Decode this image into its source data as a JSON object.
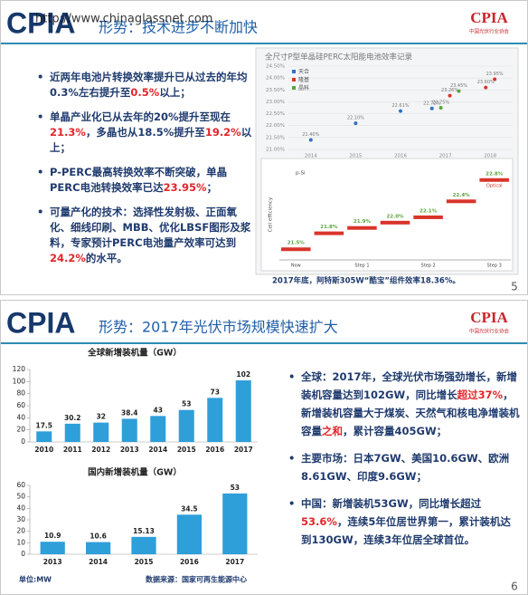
{
  "slides": [
    {
      "logo": "CPIA",
      "logo_sub": "中国光伏行业协会",
      "watermark": "http://www.chinaglassnet.com",
      "title": "形势：技术进步不断加快",
      "bullets": [
        [
          {
            "text": "近两年电池片转换效率提升已从过去的年均0.3%左右提升至"
          },
          {
            "text": "0.5%",
            "color": "#e3262b"
          },
          {
            "text": "以上；"
          }
        ],
        [
          {
            "text": "单晶产业化已从去年的20%提升至现在"
          },
          {
            "text": "21.3%",
            "color": "#e3262b"
          },
          {
            "text": "，多晶也从18.5%提升至"
          },
          {
            "text": "19.2%",
            "color": "#e3262b"
          },
          {
            "text": "以上；"
          }
        ],
        [
          {
            "text": "P-PERC最高转换效率不断突破，单晶PERC电池转换效率已达"
          },
          {
            "text": "23.95%",
            "color": "#e3262b"
          },
          {
            "text": "；"
          }
        ],
        [
          {
            "text": "可量产化的技术：选择性发射极、正面氧化、细线印刷、MBB、优化LBSF图形及浆料，专家预计PERC电池量产效率可达到"
          },
          {
            "text": "24.2%",
            "color": "#e3262b"
          },
          {
            "text": "的水平。"
          }
        ]
      ],
      "charts": [
        {
          "type": "scatter",
          "title": "全尺寸P型单晶硅PERC太阳能电池效率记录",
          "xlim": [
            2013.5,
            2018.5
          ],
          "xticks": [
            2014,
            2015,
            2016,
            2017,
            2018
          ],
          "ylim": [
            21,
            24.5
          ],
          "yticks": [
            {
              "value": 21,
              "label": "21.00%"
            },
            {
              "value": 21.5,
              "label": "21.50%"
            },
            {
              "value": 22,
              "label": "22.00%"
            },
            {
              "value": 22.5,
              "label": "22.50%"
            },
            {
              "value": 23,
              "label": "23.00%"
            },
            {
              "value": 23.5,
              "label": "23.50%"
            },
            {
              "value": 24,
              "label": "24.00%"
            },
            {
              "value": 24.5,
              "label": "24.50%"
            }
          ],
          "grid": true,
          "series": [
            {
              "name": "天合",
              "color": "#2f6fc0",
              "x": [
                2014,
                2015,
                2016,
                2016.7
              ],
              "values": [
                21.4,
                22.1,
                22.61,
                22.72
              ],
              "value_labels": [
                "21.40%",
                "22.10%",
                "22.61%",
                "22.72%"
              ]
            },
            {
              "name": "隆基",
              "color": "#d9342b",
              "x": [
                2017.1,
                2017.9,
                2018.1
              ],
              "values": [
                23.26,
                23.6,
                23.95
              ],
              "value_labels": [
                "23.26%",
                "23.60%",
                "23.95%"
              ]
            },
            {
              "name": "晶科",
              "color": "#5aa33c",
              "x": [
                2016.9,
                2017.3
              ],
              "values": [
                22.75,
                23.45
              ],
              "value_labels": [
                "22.75%",
                "23.45%"
              ]
            }
          ]
        },
        {
          "type": "step",
          "ylabel": "Cell efficiency",
          "subtitle": "p-Si",
          "annotation": "Optical",
          "categories": [
            "Now",
            null,
            "Step 1",
            null,
            "Step 2",
            null,
            "Step 3"
          ],
          "values": [
            21.5,
            21.8,
            21.9,
            22,
            22.1,
            22.4,
            22.8
          ],
          "value_labels": [
            "21.5%",
            "21.8%",
            "21.9%",
            "22.0%",
            "22.1%",
            "22.4%",
            "22.8%"
          ],
          "ylim": [
            21.3,
            23
          ],
          "color": "#d9342b"
        }
      ],
      "caption": "2017年底，阿特斯305W“酷宝”组件效率18.36%。",
      "page": "5"
    },
    {
      "logo": "CPIA",
      "logo_sub": "中国光伏行业协会",
      "title": "形势：2017年光伏市场规模快速扩大",
      "bullets": [
        [
          {
            "text": "全球：2017年，全球光伏市场强劲增长，新增装机容量达到102GW，同比增长"
          },
          {
            "text": "超过37%",
            "color": "#e3262b"
          },
          {
            "text": "，新增装机容量大于煤炭、天然气和核电净增装机容量"
          },
          {
            "text": "之和",
            "color": "#e3262b"
          },
          {
            "text": "，累计容量405GW；"
          }
        ],
        [
          {
            "text": "主要市场：日本7GW、美国10.6GW、欧洲8.61GW、印度9.6GW；"
          }
        ],
        [
          {
            "text": "中国：新增装机53GW，同比增长超过"
          },
          {
            "text": "53.6%",
            "color": "#e3262b"
          },
          {
            "text": "，连续5年位居世界第一，累计装机达到130GW，连续3年位居全球首位。"
          }
        ]
      ],
      "charts": [
        {
          "type": "bar",
          "title": "全球新增装机量（GW）",
          "color": "#2e9fd9",
          "categories": [
            "2010",
            "2011",
            "2012",
            "2013",
            "2014",
            "2015",
            "2016",
            "2017"
          ],
          "values": [
            17.5,
            30.2,
            32,
            38.4,
            43,
            53,
            73,
            102
          ],
          "ylim": [
            0,
            120
          ],
          "yticks": [
            0,
            20,
            40,
            60,
            80,
            100,
            120
          ]
        },
        {
          "type": "bar",
          "title": "国内新增装机量（GW）",
          "color": "#2e9fd9",
          "categories": [
            "2013",
            "2014",
            "2015",
            "2016",
            "2017"
          ],
          "values": [
            10.9,
            10.6,
            15.13,
            34.5,
            53
          ],
          "ylim": [
            0,
            60
          ],
          "yticks": [
            0,
            10,
            20,
            30,
            40,
            50,
            60
          ]
        }
      ],
      "notes": [
        "单位:MW",
        "数据来源：国家可再生能源中心"
      ],
      "page": "6"
    }
  ]
}
